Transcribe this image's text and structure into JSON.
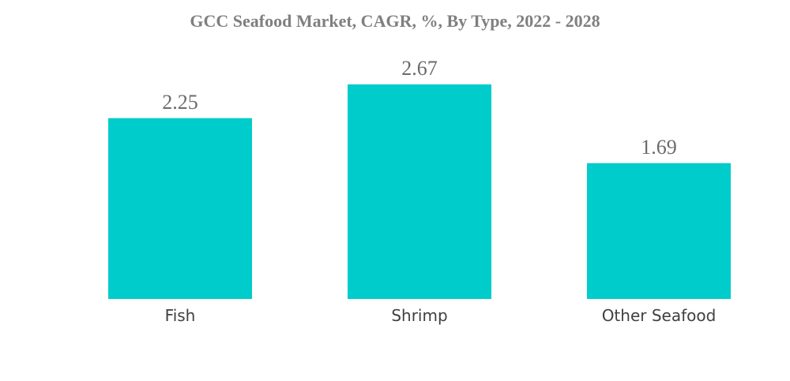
{
  "chart_data": {
    "type": "bar",
    "title": "GCC Seafood Market, CAGR, %, By Type, 2022 - 2028",
    "categories": [
      "Fish",
      "Shrimp",
      "Other Seafood"
    ],
    "values": [
      2.25,
      2.67,
      1.69
    ],
    "xlabel": "",
    "ylabel": "",
    "ylim": [
      0,
      2.67
    ],
    "grid": false,
    "legend": "none",
    "bar_color": "#00cccc"
  }
}
